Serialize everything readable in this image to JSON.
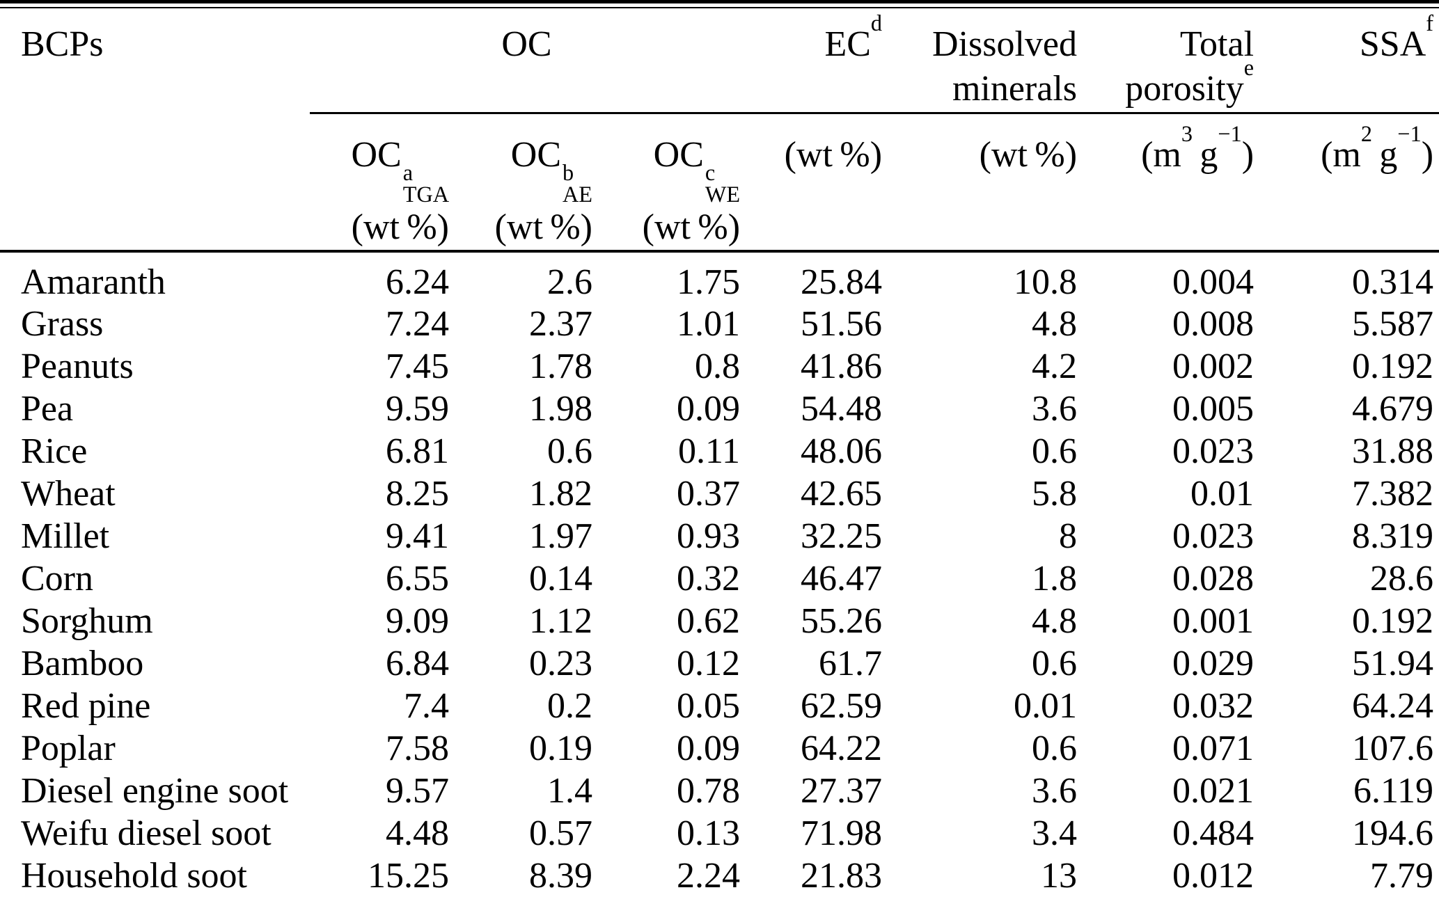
{
  "colors": {
    "background": "#ffffff",
    "text": "#000000",
    "rule": "#000000"
  },
  "table": {
    "header": {
      "bcps": "BCPs",
      "oc_group": "OC",
      "ec": {
        "base": "EC",
        "sup": "d"
      },
      "dissolved_minerals": {
        "line1": "Dissolved",
        "line2": "minerals"
      },
      "total_porosity": {
        "line1": "Total",
        "line2_base": "porosity",
        "line2_sup": "e"
      },
      "ssa": {
        "base": "SSA",
        "sup": "f"
      }
    },
    "subheader": {
      "oc_tga": {
        "base": "OC",
        "sup": "a",
        "sub": "TGA",
        "unit": "(wt %)"
      },
      "oc_ae": {
        "base": "OC",
        "sup": "b",
        "sub": "AE",
        "unit": "(wt %)"
      },
      "oc_we": {
        "base": "OC",
        "sup": "c",
        "sub": "WE",
        "unit": "(wt %)"
      },
      "ec_unit": "(wt %)",
      "minerals_unit": "(wt %)",
      "porosity_unit": {
        "pre": "(m",
        "sup1": "3",
        "mid": " g",
        "sup2": "−1",
        "post": ")"
      },
      "ssa_unit": {
        "pre": "(m",
        "sup1": "2",
        "mid": " g",
        "sup2": "−1",
        "post": ")"
      }
    },
    "rows": [
      {
        "name": "Amaranth",
        "values": [
          "6.24",
          "2.6",
          "1.75",
          "25.84",
          "10.8",
          "0.004",
          "0.314"
        ]
      },
      {
        "name": "Grass",
        "values": [
          "7.24",
          "2.37",
          "1.01",
          "51.56",
          "4.8",
          "0.008",
          "5.587"
        ]
      },
      {
        "name": "Peanuts",
        "values": [
          "7.45",
          "1.78",
          "0.8",
          "41.86",
          "4.2",
          "0.002",
          "0.192"
        ]
      },
      {
        "name": "Pea",
        "values": [
          "9.59",
          "1.98",
          "0.09",
          "54.48",
          "3.6",
          "0.005",
          "4.679"
        ]
      },
      {
        "name": "Rice",
        "values": [
          "6.81",
          "0.6",
          "0.11",
          "48.06",
          "0.6",
          "0.023",
          "31.88"
        ]
      },
      {
        "name": "Wheat",
        "values": [
          "8.25",
          "1.82",
          "0.37",
          "42.65",
          "5.8",
          "0.01",
          "7.382"
        ]
      },
      {
        "name": "Millet",
        "values": [
          "9.41",
          "1.97",
          "0.93",
          "32.25",
          "8",
          "0.023",
          "8.319"
        ]
      },
      {
        "name": "Corn",
        "values": [
          "6.55",
          "0.14",
          "0.32",
          "46.47",
          "1.8",
          "0.028",
          "28.6"
        ]
      },
      {
        "name": "Sorghum",
        "values": [
          "9.09",
          "1.12",
          "0.62",
          "55.26",
          "4.8",
          "0.001",
          "0.192"
        ]
      },
      {
        "name": "Bamboo",
        "values": [
          "6.84",
          "0.23",
          "0.12",
          "61.7",
          "0.6",
          "0.029",
          "51.94"
        ]
      },
      {
        "name": "Red pine",
        "values": [
          "7.4",
          "0.2",
          "0.05",
          "62.59",
          "0.01",
          "0.032",
          "64.24"
        ]
      },
      {
        "name": "Poplar",
        "values": [
          "7.58",
          "0.19",
          "0.09",
          "64.22",
          "0.6",
          "0.071",
          "107.6"
        ]
      },
      {
        "name": "Diesel engine soot",
        "values": [
          "9.57",
          "1.4",
          "0.78",
          "27.37",
          "3.6",
          "0.021",
          "6.119"
        ]
      },
      {
        "name": "Weifu diesel soot",
        "values": [
          "4.48",
          "0.57",
          "0.13",
          "71.98",
          "3.4",
          "0.484",
          "194.6"
        ]
      },
      {
        "name": "Household soot",
        "values": [
          "15.25",
          "8.39",
          "2.24",
          "21.83",
          "13",
          "0.012",
          "7.79"
        ]
      }
    ]
  }
}
